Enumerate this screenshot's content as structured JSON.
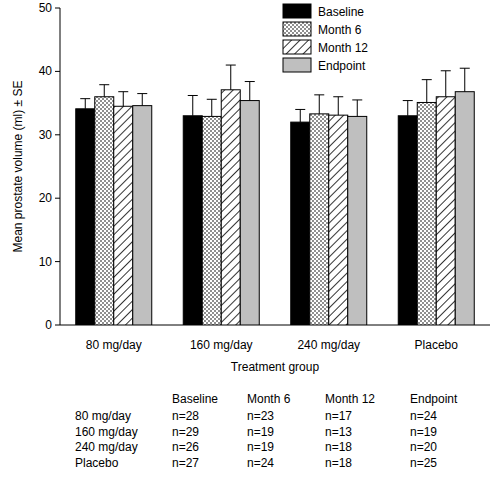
{
  "chart_data": {
    "type": "bar",
    "categories": [
      "80 mg/day",
      "160 mg/day",
      "240 mg/day",
      "Placebo"
    ],
    "x_label": "Treatment group",
    "y_label": "Mean prostate volume (ml) ± SE",
    "series": [
      {
        "name": "Baseline",
        "color": "#000000",
        "values": [
          34.1,
          33.0,
          32.0,
          33.0
        ],
        "errors": [
          1.6,
          3.2,
          2.0,
          2.4
        ]
      },
      {
        "name": "Month 6",
        "color": "#ffffff",
        "values": [
          36.0,
          32.9,
          33.3,
          35.1
        ],
        "errors": [
          1.9,
          2.7,
          3.0,
          3.6
        ]
      },
      {
        "name": "Month 12",
        "color": "#ffffff",
        "values": [
          34.5,
          37.1,
          33.1,
          36.0
        ],
        "errors": [
          2.3,
          3.9,
          2.9,
          4.1
        ]
      },
      {
        "name": "Endpoint",
        "color": "#bfbfbf",
        "values": [
          34.6,
          35.4,
          32.9,
          36.8
        ],
        "errors": [
          1.9,
          3.0,
          2.6,
          3.7
        ]
      }
    ],
    "ylim": [
      0,
      50
    ],
    "yticks": [
      0,
      10,
      20,
      30,
      40,
      50
    ],
    "grid": false,
    "legend": "upper right",
    "data_labels": false
  },
  "table": {
    "columns": [
      "Baseline",
      "Month 6",
      "Month 12",
      "Endpoint"
    ],
    "rows": [
      {
        "label": "80 mg/day",
        "cells": [
          "n=28",
          "n=23",
          "n=17",
          "n=24"
        ]
      },
      {
        "label": "160 mg/day",
        "cells": [
          "n=29",
          "n=19",
          "n=13",
          "n=19"
        ]
      },
      {
        "label": "240 mg/day",
        "cells": [
          "n=26",
          "n=19",
          "n=18",
          "n=20"
        ]
      },
      {
        "label": "Placebo",
        "cells": [
          "n=27",
          "n=24",
          "n=18",
          "n=25"
        ]
      }
    ]
  }
}
